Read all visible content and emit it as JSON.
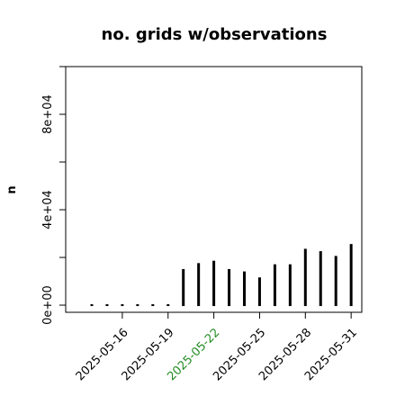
{
  "chart_data": {
    "type": "bar",
    "title": "no. grids w/observations",
    "xlabel": "",
    "ylabel": "n",
    "ylim": [
      -3000,
      100000
    ],
    "y_ticks": [
      0,
      20000,
      40000,
      60000,
      80000,
      100000
    ],
    "y_tick_labels": [
      {
        "value": 0,
        "label": "0e+00"
      },
      {
        "value": 40000,
        "label": "4e+04"
      },
      {
        "value": 80000,
        "label": "8e+04"
      }
    ],
    "x_tick_labels": [
      {
        "date": "2025-05-16",
        "color": "#000000"
      },
      {
        "date": "2025-05-19",
        "color": "#000000"
      },
      {
        "date": "2025-05-22",
        "color": "#228B22"
      },
      {
        "date": "2025-05-25",
        "color": "#000000"
      },
      {
        "date": "2025-05-28",
        "color": "#000000"
      },
      {
        "date": "2025-05-31",
        "color": "#000000"
      }
    ],
    "categories": [
      "2025-05-14",
      "2025-05-15",
      "2025-05-16",
      "2025-05-17",
      "2025-05-18",
      "2025-05-19",
      "2025-05-20",
      "2025-05-21",
      "2025-05-22",
      "2025-05-23",
      "2025-05-24",
      "2025-05-25",
      "2025-05-26",
      "2025-05-27",
      "2025-05-28",
      "2025-05-29",
      "2025-05-30",
      "2025-05-31"
    ],
    "values": [
      0,
      0,
      0,
      0,
      0,
      0,
      15500,
      18000,
      19000,
      15500,
      14500,
      12000,
      17500,
      17500,
      24000,
      23000,
      21000,
      26000
    ],
    "bar_color": "#000000",
    "grid": false
  }
}
